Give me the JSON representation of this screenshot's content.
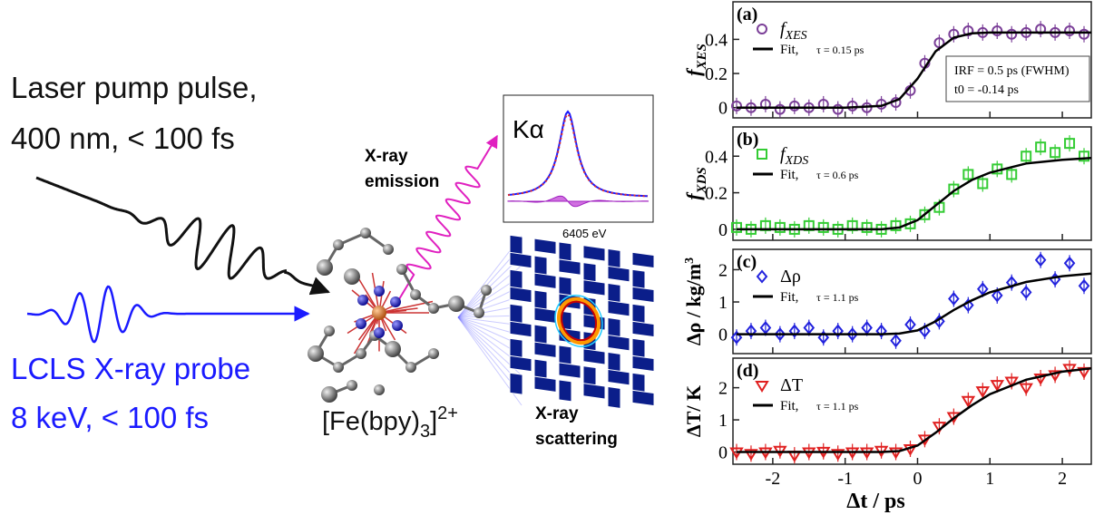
{
  "diagram": {
    "pump_line1": "Laser pump pulse,",
    "pump_line2": "400 nm, < 100 fs",
    "probe_line1": "LCLS X-ray probe",
    "probe_line2": "8 keV, < 100 fs",
    "molecule": {
      "text": "[Fe(bpy)",
      "sub": "3",
      "close": "]",
      "sup": "2+"
    },
    "emission_line1": "X-ray",
    "emission_line2": "emission",
    "inset_label": "Kα",
    "inset_axis": "6405 eV",
    "scattering_line1": "X-ray",
    "scattering_line2": "scattering"
  },
  "chart_data": [
    {
      "type": "scatter",
      "panel": "(a)",
      "ylabel": {
        "text": "f",
        "sub": "XES"
      },
      "xlim": [
        -2.55,
        2.4
      ],
      "xticks": [
        -2,
        -1,
        0,
        1,
        2
      ],
      "ylim": [
        -0.06,
        0.62
      ],
      "yticks": [
        0,
        0.2,
        0.4
      ],
      "annotations": [
        "IRF = 0.5 ps (FWHM)",
        "t0 = -0.14 ps"
      ],
      "series": [
        {
          "name": "f",
          "name_sub": "XES",
          "marker": "circle",
          "color": "#7b3f98",
          "x": [
            -2.5,
            -2.3,
            -2.1,
            -1.9,
            -1.7,
            -1.5,
            -1.3,
            -1.1,
            -0.9,
            -0.7,
            -0.5,
            -0.3,
            -0.1,
            0.1,
            0.3,
            0.5,
            0.7,
            0.9,
            1.1,
            1.3,
            1.5,
            1.7,
            1.9,
            2.1,
            2.3
          ],
          "values": [
            0.01,
            0,
            0.02,
            -0.01,
            0.01,
            0,
            0.02,
            -0.01,
            0.01,
            0,
            0.02,
            0.03,
            0.1,
            0.26,
            0.38,
            0.43,
            0.45,
            0.44,
            0.45,
            0.43,
            0.44,
            0.46,
            0.44,
            0.45,
            0.43
          ]
        },
        {
          "name": "Fit,",
          "annotation": "τ = 0.15 ps",
          "marker": "line",
          "color": "#000000",
          "x": [
            -2.5,
            -2,
            -1.5,
            -1,
            -0.5,
            -0.25,
            0,
            0.25,
            0.5,
            0.75,
            1,
            1.5,
            2,
            2.4
          ],
          "values": [
            0,
            0,
            0,
            0,
            0.01,
            0.05,
            0.17,
            0.33,
            0.41,
            0.435,
            0.44,
            0.44,
            0.44,
            0.44
          ]
        }
      ]
    },
    {
      "type": "scatter",
      "panel": "(b)",
      "ylabel": {
        "text": "f",
        "sub": "XDS"
      },
      "xlim": [
        -2.55,
        2.4
      ],
      "xticks": [
        -2,
        -1,
        0,
        1,
        2
      ],
      "ylim": [
        -0.06,
        0.56
      ],
      "yticks": [
        0,
        0.2,
        0.4
      ],
      "series": [
        {
          "name": "f",
          "name_sub": "XDS",
          "marker": "square",
          "color": "#33cc33",
          "x": [
            -2.5,
            -2.3,
            -2.1,
            -1.9,
            -1.7,
            -1.5,
            -1.3,
            -1.1,
            -0.9,
            -0.7,
            -0.5,
            -0.3,
            -0.1,
            0.1,
            0.3,
            0.5,
            0.7,
            0.9,
            1.1,
            1.3,
            1.5,
            1.7,
            1.9,
            2.1,
            2.3
          ],
          "values": [
            0.01,
            0,
            0.02,
            0.01,
            0,
            0.02,
            0.01,
            0,
            0.02,
            0.01,
            0,
            0.02,
            0.03,
            0.08,
            0.12,
            0.22,
            0.3,
            0.25,
            0.33,
            0.3,
            0.4,
            0.45,
            0.42,
            0.47,
            0.4
          ]
        },
        {
          "name": "Fit,",
          "annotation": "τ = 0.6 ps",
          "marker": "line",
          "color": "#000000",
          "x": [
            -2.5,
            -2,
            -1.5,
            -1,
            -0.5,
            -0.25,
            0,
            0.25,
            0.5,
            0.75,
            1,
            1.5,
            2,
            2.4
          ],
          "values": [
            0,
            0,
            0,
            0,
            0,
            0.01,
            0.05,
            0.13,
            0.21,
            0.27,
            0.31,
            0.36,
            0.38,
            0.39
          ]
        }
      ]
    },
    {
      "type": "scatter",
      "panel": "(c)",
      "ylabel": {
        "text": "Δρ / kg/m",
        "sup": "3"
      },
      "xlim": [
        -2.55,
        2.4
      ],
      "xticks": [
        -2,
        -1,
        0,
        1,
        2
      ],
      "ylim": [
        -0.6,
        2.63
      ],
      "yticks": [
        0,
        1,
        2
      ],
      "series": [
        {
          "name": "Δρ",
          "marker": "diamond",
          "color": "#2222dd",
          "x": [
            -2.5,
            -2.3,
            -2.1,
            -1.9,
            -1.7,
            -1.5,
            -1.3,
            -1.1,
            -0.9,
            -0.7,
            -0.5,
            -0.3,
            -0.1,
            0.1,
            0.3,
            0.5,
            0.7,
            0.9,
            1.1,
            1.3,
            1.5,
            1.7,
            1.9,
            2.1,
            2.3
          ],
          "values": [
            -0.1,
            0.1,
            0.2,
            0,
            0.1,
            0.2,
            -0.1,
            0.1,
            0,
            0.2,
            0.1,
            -0.2,
            0.3,
            0.1,
            0.4,
            1.1,
            0.9,
            1.4,
            1.2,
            1.6,
            1.3,
            2.3,
            1.7,
            2.2,
            1.5
          ]
        },
        {
          "name": "Fit,",
          "annotation": "τ = 1.1 ps",
          "marker": "line",
          "color": "#000000",
          "x": [
            -2.5,
            -2,
            -1.5,
            -1,
            -0.5,
            -0.25,
            0,
            0.25,
            0.5,
            0.75,
            1,
            1.5,
            2,
            2.4
          ],
          "values": [
            0,
            0,
            0,
            0,
            0,
            0.02,
            0.12,
            0.4,
            0.75,
            1.05,
            1.3,
            1.62,
            1.8,
            1.88
          ]
        }
      ]
    },
    {
      "type": "scatter",
      "panel": "(d)",
      "ylabel": {
        "text": "ΔT/ K"
      },
      "xlabel": "Δt / ps",
      "xlim": [
        -2.55,
        2.4
      ],
      "xticks": [
        -2,
        -1,
        0,
        1,
        2
      ],
      "ylim": [
        -0.38,
        2.92
      ],
      "yticks": [
        0,
        1,
        2
      ],
      "series": [
        {
          "name": "ΔT",
          "marker": "triangle-down",
          "color": "#e02020",
          "x": [
            -2.5,
            -2.3,
            -2.1,
            -1.9,
            -1.7,
            -1.5,
            -1.3,
            -1.1,
            -0.9,
            -0.7,
            -0.5,
            -0.3,
            -0.1,
            0.1,
            0.3,
            0.5,
            0.7,
            0.9,
            1.1,
            1.3,
            1.5,
            1.7,
            1.9,
            2.1,
            2.3
          ],
          "values": [
            0,
            -0.05,
            0,
            0.05,
            -0.1,
            0,
            0.02,
            -0.05,
            0,
            0,
            0.05,
            0,
            0.1,
            0.4,
            0.8,
            1.1,
            1.6,
            1.9,
            2.1,
            2.2,
            2,
            2.3,
            2.4,
            2.6,
            2.5
          ]
        },
        {
          "name": "Fit,",
          "annotation": "τ = 1.1 ps",
          "marker": "line",
          "color": "#000000",
          "x": [
            -2.5,
            -2,
            -1.5,
            -1,
            -0.5,
            -0.25,
            0,
            0.25,
            0.5,
            0.75,
            1,
            1.5,
            2,
            2.4
          ],
          "values": [
            0,
            0,
            0,
            0,
            0,
            0.03,
            0.2,
            0.6,
            1.05,
            1.45,
            1.8,
            2.25,
            2.5,
            2.6
          ]
        }
      ]
    }
  ]
}
